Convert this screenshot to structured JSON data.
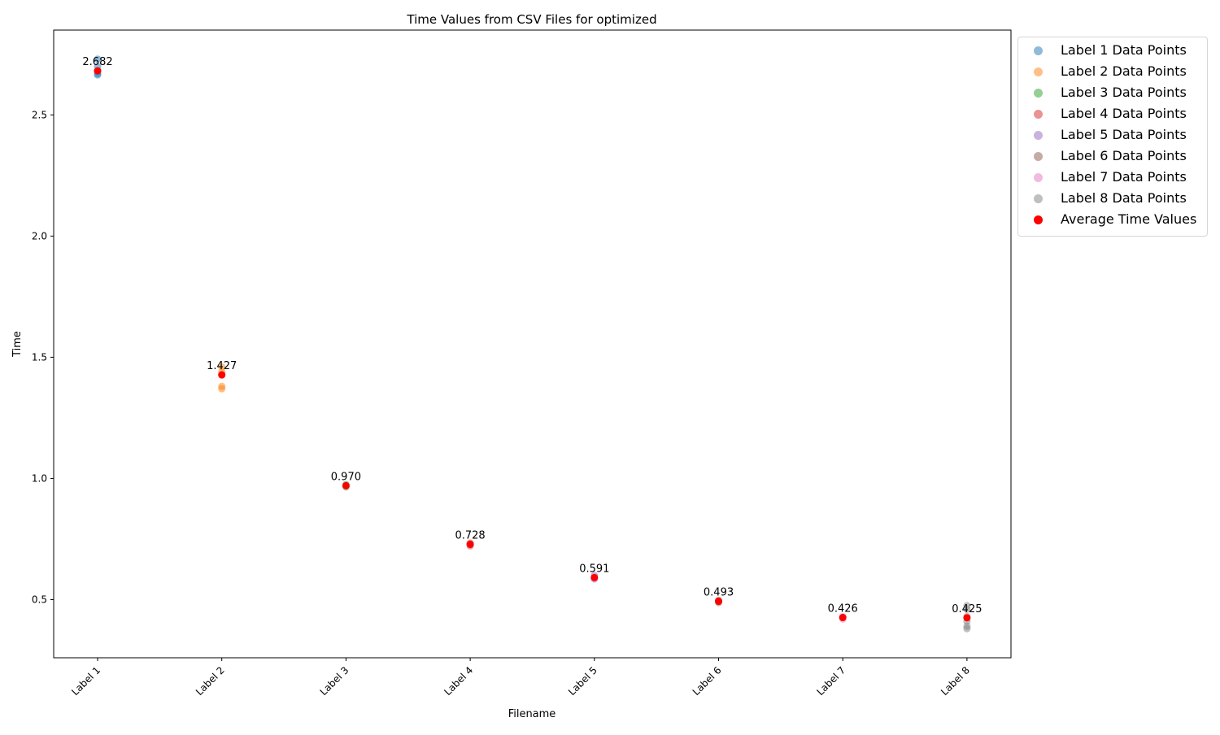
{
  "chart_data": {
    "type": "scatter",
    "title": "Time Values from CSV Files for optimized",
    "xlabel": "Filename",
    "ylabel": "Time",
    "categories": [
      "Label 1",
      "Label 2",
      "Label 3",
      "Label 4",
      "Label 5",
      "Label 6",
      "Label 7",
      "Label 8"
    ],
    "ylim": [
      0.26,
      2.85
    ],
    "yticks": [
      0.5,
      1.0,
      1.5,
      2.0,
      2.5
    ],
    "ytick_labels": [
      "0.5",
      "1.0",
      "1.5",
      "2.0",
      "2.5"
    ],
    "grid": false,
    "legend_position": "outside-right-top",
    "series": [
      {
        "name": "Label 1 Data Points",
        "color": "#1f77b4",
        "points": [
          [
            0,
            2.73
          ],
          [
            0,
            2.7
          ],
          [
            0,
            2.68
          ],
          [
            0,
            2.67
          ],
          [
            0,
            2.665
          ]
        ]
      },
      {
        "name": "Label 2 Data Points",
        "color": "#ff7f0e",
        "points": [
          [
            1,
            1.46
          ],
          [
            1,
            1.44
          ],
          [
            1,
            1.43
          ],
          [
            1,
            1.38
          ],
          [
            1,
            1.37
          ]
        ]
      },
      {
        "name": "Label 3 Data Points",
        "color": "#2ca02c",
        "points": [
          [
            2,
            0.975
          ],
          [
            2,
            0.97
          ],
          [
            2,
            0.965
          ]
        ]
      },
      {
        "name": "Label 4 Data Points",
        "color": "#d62728",
        "points": [
          [
            3,
            0.733
          ],
          [
            3,
            0.728
          ],
          [
            3,
            0.722
          ]
        ]
      },
      {
        "name": "Label 5 Data Points",
        "color": "#9467bd",
        "points": [
          [
            4,
            0.6
          ],
          [
            4,
            0.59
          ],
          [
            4,
            0.585
          ]
        ]
      },
      {
        "name": "Label 6 Data Points",
        "color": "#8c564b",
        "points": [
          [
            5,
            0.497
          ],
          [
            5,
            0.493
          ],
          [
            5,
            0.488
          ]
        ]
      },
      {
        "name": "Label 7 Data Points",
        "color": "#e377c2",
        "points": [
          [
            6,
            0.43
          ],
          [
            6,
            0.426
          ],
          [
            6,
            0.42
          ]
        ]
      },
      {
        "name": "Label 8 Data Points",
        "color": "#7f7f7f",
        "points": [
          [
            7,
            0.475
          ],
          [
            7,
            0.46
          ],
          [
            7,
            0.43
          ],
          [
            7,
            0.41
          ],
          [
            7,
            0.39
          ],
          [
            7,
            0.38
          ]
        ]
      }
    ],
    "averages": {
      "name": "Average Time Values",
      "color": "#ff0000",
      "values": [
        2.682,
        1.427,
        0.97,
        0.728,
        0.591,
        0.493,
        0.426,
        0.425
      ],
      "value_labels": [
        "2.682",
        "1.427",
        "0.970",
        "0.728",
        "0.591",
        "0.493",
        "0.426",
        "0.425"
      ]
    }
  }
}
